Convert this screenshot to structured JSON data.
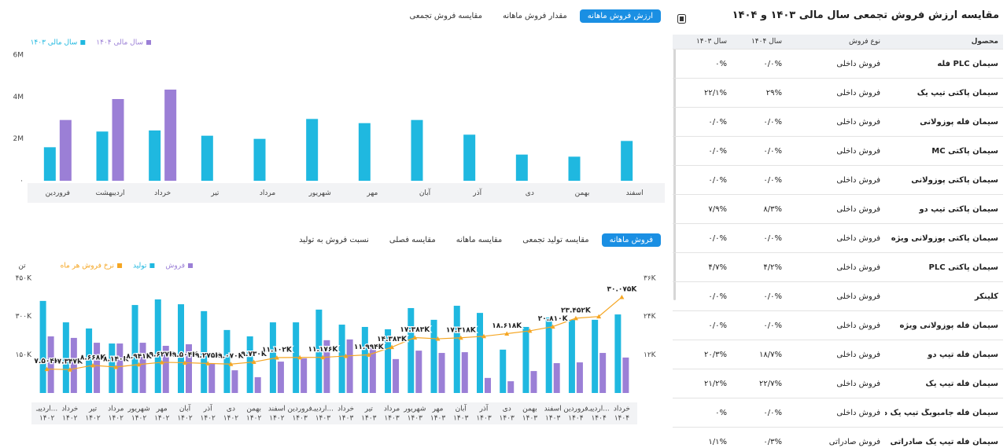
{
  "top_tabs": {
    "items": [
      "ارزش فروش ماهانه",
      "مقدار فروش ماهانه",
      "مقایسه فروش تجمعی"
    ],
    "active": 0
  },
  "bottom_tabs": {
    "items": [
      "فروش ماهانه",
      "مقایسه تولید تجمعی",
      "مقایسه ماهانه",
      "مقایسه فصلی",
      "نسبت فروش به تولید"
    ],
    "active": 0
  },
  "chart_data": [
    {
      "type": "bar",
      "categories": [
        "فروردین",
        "اردیبهشت",
        "خرداد",
        "تیر",
        "مرداد",
        "شهریور",
        "مهر",
        "آبان",
        "آذر",
        "دی",
        "بهمن",
        "اسفند"
      ],
      "series": [
        {
          "name": "سال مالی ۱۴۰۴",
          "color": "#9b7fd6",
          "values": [
            2900000,
            3900000,
            4350000,
            null,
            null,
            null,
            null,
            null,
            null,
            null,
            null,
            null
          ]
        },
        {
          "name": "سال مالی ۱۴۰۳",
          "color": "#1fb8e0",
          "values": [
            1600000,
            2350000,
            2400000,
            2150000,
            2000000,
            2950000,
            2750000,
            2900000,
            2200000,
            1250000,
            1150000,
            1900000
          ]
        }
      ],
      "ylim": [
        0,
        6000000
      ],
      "yticks": [
        {
          "value": 0,
          "label": "۰"
        },
        {
          "value": 2000000,
          "label": "2M"
        },
        {
          "value": 4000000,
          "label": "4M"
        },
        {
          "value": 6000000,
          "label": "6M"
        }
      ],
      "grid": false
    },
    {
      "type": "bar",
      "ylabel": "تن",
      "categories": [
        [
          "اردیبـ...",
          "۱۴۰۲"
        ],
        [
          "خرداد",
          "۱۴۰۲"
        ],
        [
          "تیر",
          "۱۴۰۲"
        ],
        [
          "مرداد",
          "۱۴۰۲"
        ],
        [
          "شهریور",
          "۱۴۰۲"
        ],
        [
          "مهر",
          "۱۴۰۲"
        ],
        [
          "آبان",
          "۱۴۰۲"
        ],
        [
          "آذر",
          "۱۴۰۲"
        ],
        [
          "دی",
          "۱۴۰۲"
        ],
        [
          "بهمن",
          "۱۴۰۲"
        ],
        [
          "اسفند",
          "۱۴۰۲"
        ],
        [
          "فروردین",
          "۱۴۰۳"
        ],
        [
          "اردیبـ...",
          "۱۴۰۳"
        ],
        [
          "خرداد",
          "۱۴۰۳"
        ],
        [
          "تیر",
          "۱۴۰۳"
        ],
        [
          "مرداد",
          "۱۴۰۳"
        ],
        [
          "شهریور",
          "۱۴۰۳"
        ],
        [
          "مهر",
          "۱۴۰۳"
        ],
        [
          "آبان",
          "۱۴۰۳"
        ],
        [
          "آذر",
          "۱۴۰۳"
        ],
        [
          "دی",
          "۱۴۰۳"
        ],
        [
          "بهمن",
          "۱۴۰۳"
        ],
        [
          "اسفند",
          "۱۴۰۳"
        ],
        [
          "فروردین",
          "۱۴۰۴"
        ],
        [
          "اردیبـ...",
          "۱۴۰۴"
        ],
        [
          "خرداد",
          "۱۴۰۴"
        ]
      ],
      "series": [
        {
          "name": "فروش",
          "type": "bar",
          "color": "#9b7fd6",
          "values": [
            222000,
            216000,
            197000,
            194000,
            197000,
            185000,
            191000,
            114000,
            89000,
            62000,
            123000,
            136000,
            207000,
            210000,
            182000,
            133000,
            166000,
            157000,
            160000,
            59000,
            46000,
            86000,
            117000,
            120000,
            157000,
            139000
          ]
        },
        {
          "name": "تولید",
          "type": "bar",
          "color": "#1fb8e0",
          "values": [
            361000,
            277000,
            253000,
            194000,
            345000,
            367000,
            348000,
            321000,
            247000,
            222000,
            277000,
            277000,
            327000,
            268000,
            259000,
            250000,
            333000,
            287000,
            342000,
            314000,
            170000,
            259000,
            296000,
            287000,
            287000,
            308000
          ]
        },
        {
          "name": "نرخ فروش هر ماه",
          "type": "line",
          "axis": "y2",
          "color": "#f5a623",
          "values": [
            7504,
            7347,
            8668,
            8140,
            8941,
            9627,
            9504,
            9275,
            9070,
            9730,
            11102,
            11150,
            11176,
            11600,
            11994,
            14383,
            17383,
            17000,
            17318,
            17800,
            18618,
            19500,
            20810,
            23452,
            24000,
            30075
          ],
          "value_labels": [
            "۷.۵۰۴K",
            "۷.۳۴۷K",
            "۸.۶۶۸K",
            "۸.۱۴۰K",
            "۸.۹۴۱K",
            "۹.۶۲۷K",
            "۹.۵۰۴K",
            "۹.۲۷۵K",
            "۹.۰۷۰K",
            "۹.۷۳۰K",
            "۱۱.۱۰۲K",
            null,
            "۱۱.۱۷۶K",
            null,
            "۱۱.۹۹۴K",
            "۱۴.۳۸۳K",
            "۱۷.۳۸۳K",
            null,
            "۱۷.۳۱۸K",
            null,
            "۱۸.۶۱۸K",
            null,
            "۲۰.۸۱۰K",
            "۲۳.۴۵۲K",
            null,
            "۳۰.۰۷۵K"
          ]
        }
      ],
      "ylim": [
        0,
        450000
      ],
      "yticks": [
        {
          "value": 150000,
          "label": "۱۵۰K"
        },
        {
          "value": 300000,
          "label": "۳۰۰K"
        },
        {
          "value": 450000,
          "label": "۴۵۰K"
        }
      ],
      "y2lim": [
        0,
        36000
      ],
      "y2ticks": [
        {
          "value": 12000,
          "label": "۱۲K"
        },
        {
          "value": 24000,
          "label": "۲۴K"
        },
        {
          "value": 36000,
          "label": "۳۶K"
        }
      ],
      "grid": false
    }
  ],
  "table": {
    "title": "مقایسه ارزش فروش تجمعی سال مالی ۱۴۰۳ و ۱۴۰۴",
    "columns": [
      "محصول",
      "نوع فروش",
      "سال ۱۴۰۴",
      "سال ۱۴۰۳"
    ],
    "rows": [
      [
        "سیمان PLC فله",
        "فروش داخلی",
        "۰/۰%",
        "۰%"
      ],
      [
        "سیمان پاکتی تیپ یک",
        "فروش داخلی",
        "۲۹%",
        "۲۲/۱%"
      ],
      [
        "سیمان فله پوزولانی",
        "فروش داخلی",
        "۰/۰%",
        "۰/۰%"
      ],
      [
        "سیمان پاکتی MC",
        "فروش داخلی",
        "۰/۰%",
        "۰/۰%"
      ],
      [
        "سیمان پاکتی پوزولانی",
        "فروش داخلی",
        "۰/۰%",
        "۰/۰%"
      ],
      [
        "سیمان پاکتی تیپ دو",
        "فروش داخلی",
        "۸/۳%",
        "۷/۹%"
      ],
      [
        "سیمان پاکتی پوزولانی ویژه",
        "فروش داخلی",
        "۰/۰%",
        "۰/۰%"
      ],
      [
        "سیمان پاکتی PLC",
        "فروش داخلی",
        "۴/۲%",
        "۴/۷%"
      ],
      [
        "کلینکر",
        "فروش داخلی",
        "۰/۰%",
        "۰/۰%"
      ],
      [
        "سیمان فله پوزولانی ویژه",
        "فروش داخلی",
        "۰/۰%",
        "۰/۰%"
      ],
      [
        "سیمان فله تیپ دو",
        "فروش داخلی",
        "۱۸/۷%",
        "۲۰/۳%"
      ],
      [
        "سیمان فله تیپ یک",
        "فروش داخلی",
        "۲۲/۷%",
        "۲۱/۲%"
      ],
      [
        "سیمان فله جامبوبگ تیپ یک داخلی",
        "فروش داخلی",
        "۰/۰%",
        "۰%"
      ],
      [
        "سیمان فله تیپ یک صادراتی",
        "فروش صادراتی",
        "۰/۳%",
        "۱/۱%"
      ]
    ]
  }
}
